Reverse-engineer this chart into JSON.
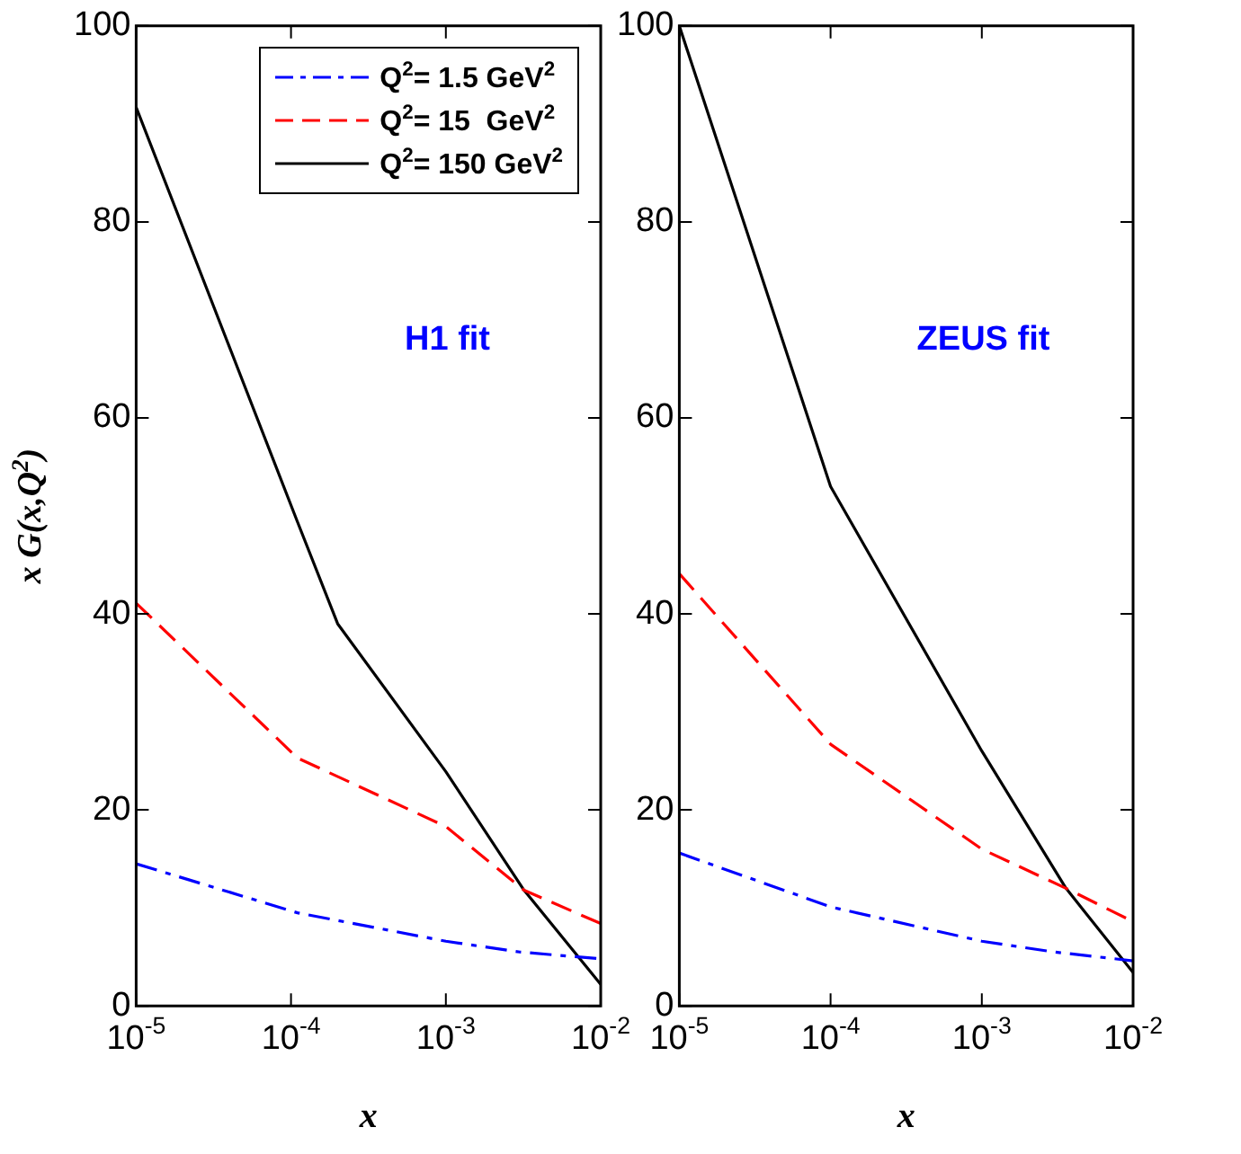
{
  "chart_data": [
    {
      "type": "line",
      "xlabel": "x",
      "ylabel": "x G(x,Q$^{2}$)",
      "log": "x",
      "xlim": [
        1e-05,
        0.01
      ],
      "ylim": [
        0,
        100
      ],
      "xticks": [
        {
          "value": 1e-05,
          "label": "10$^{-5}$"
        },
        {
          "value": 0.0001,
          "label": "10$^{-4}$"
        },
        {
          "value": 0.001,
          "label": "10$^{-3}$"
        },
        {
          "value": 0.01,
          "label": "10$^{-2}$"
        }
      ],
      "yticks": [
        0,
        20,
        40,
        60,
        80,
        100
      ],
      "grid": false,
      "legend": "top right",
      "marker": "none",
      "annotations": [
        "H1 fit"
      ],
      "series": [
        {
          "name": "Q$^{2}$= 1.5 GeV$^{2}$",
          "color": "#0000ff",
          "line_style": "dashdot",
          "x": [
            1e-05,
            0.00011,
            0.001,
            0.003,
            0.01
          ],
          "values": [
            14.5,
            9.5,
            6.6,
            5.5,
            4.8
          ]
        },
        {
          "name": "Q$^{2}$= 15  GeV$^{2}$",
          "color": "#ff0000",
          "line_style": "dashed",
          "x": [
            1e-05,
            0.00011,
            0.001,
            0.0032,
            0.01
          ],
          "values": [
            41.1,
            25.3,
            18.3,
            11.8,
            8.4
          ]
        },
        {
          "name": "Q$^{2}$= 150 GeV$^{2}$",
          "color": "#000000",
          "line_style": "solid",
          "x": [
            1e-05,
            0.00011,
            0.0002,
            0.001,
            0.0032,
            0.01
          ],
          "values": [
            91.7,
            49.4,
            39,
            23.9,
            11.8,
            2.2
          ]
        }
      ]
    },
    {
      "type": "line",
      "xlabel": "x",
      "log": "x",
      "xlim": [
        1e-05,
        0.01
      ],
      "ylim": [
        0,
        100
      ],
      "xticks": [
        {
          "value": 1e-05,
          "label": "10$^{-5}$"
        },
        {
          "value": 0.0001,
          "label": "10$^{-4}$"
        },
        {
          "value": 0.001,
          "label": "10$^{-3}$"
        },
        {
          "value": 0.01,
          "label": "10$^{-2}$"
        }
      ],
      "yticks": [
        0,
        20,
        40,
        60,
        80,
        100
      ],
      "grid": false,
      "legend": false,
      "marker": "none",
      "annotations": [
        "ZEUS fit"
      ],
      "series": [
        {
          "color": "#0000ff",
          "line_style": "dashdot",
          "x": [
            1e-05,
            0.0001,
            0.001,
            0.003,
            0.01
          ],
          "values": [
            15.6,
            10.1,
            6.6,
            5.5,
            4.6
          ]
        },
        {
          "color": "#ff0000",
          "line_style": "dashed",
          "x": [
            1e-05,
            0.0001,
            0.001,
            0.0036,
            0.01
          ],
          "values": [
            44.1,
            26.7,
            16,
            12,
            8.6
          ]
        },
        {
          "color": "#000000",
          "line_style": "solid",
          "x": [
            1e-05,
            0.0001,
            0.001,
            0.0036,
            0.01
          ],
          "values": [
            100,
            53,
            26,
            12,
            3.4
          ]
        }
      ]
    }
  ]
}
